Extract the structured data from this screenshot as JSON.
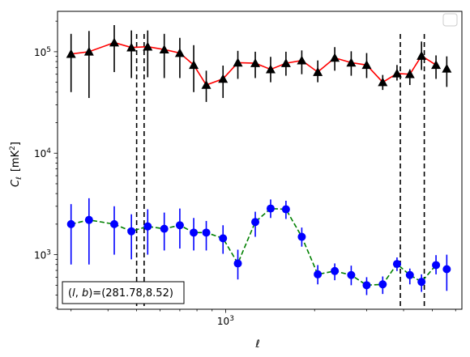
{
  "chart_data": {
    "type": "scatter",
    "xlabel": "ℓ",
    "ylabel_main": "C",
    "ylabel_sub": "ℓ",
    "ylabel_unit": "[mK",
    "ylabel_unit_sup": "2",
    "ylabel_unit_close": "]",
    "x_scale": "log",
    "y_scale": "log",
    "xlim": [
      270,
      6300
    ],
    "ylim": [
      290,
      250000
    ],
    "x_tick_labels": [
      {
        "value": 1000,
        "base": "10",
        "exp": "3"
      }
    ],
    "y_tick_labels": [
      {
        "value": 1000,
        "base": "10",
        "exp": "3"
      },
      {
        "value": 10000,
        "base": "10",
        "exp": "4"
      },
      {
        "value": 100000,
        "base": "10",
        "exp": "5"
      }
    ],
    "legend_box": "top-right",
    "annotation": "(l, b)=(281.78,8.52)",
    "annotation_parts": {
      "open": "(",
      "l": "l",
      "comma": ", ",
      "b": "b",
      "rest": ")=(281.78,8.52)"
    },
    "vlines": [
      500,
      530,
      3900,
      4700
    ],
    "colors": {
      "series1_line": "#ff0000",
      "series1_marker": "#000000",
      "series2_line": "#008000",
      "series2_marker": "#0000ff",
      "errorbar2": "#0000ff",
      "errorbar1": "#000000"
    },
    "series": [
      {
        "marker": "triangle",
        "x": [
          300,
          345,
          420,
          480,
          545,
          620,
          700,
          780,
          860,
          980,
          1100,
          1260,
          1420,
          1600,
          1810,
          2050,
          2340,
          2660,
          3000,
          3400,
          3800,
          4200,
          4600,
          5150
        ],
        "y": [
          95000,
          100000,
          123000,
          110000,
          112000,
          105000,
          97000,
          74000,
          47000,
          54000,
          78000,
          77000,
          67000,
          77000,
          82000,
          63000,
          87000,
          78000,
          74000,
          50000,
          61000,
          60000,
          91000,
          74000
        ],
        "err_low": [
          55000,
          65000,
          60000,
          55000,
          56000,
          50000,
          42000,
          34000,
          15000,
          19000,
          24000,
          22000,
          17000,
          19000,
          22000,
          13000,
          22000,
          20000,
          19000,
          8000,
          9000,
          13000,
          25000,
          20000
        ],
        "err_high": [
          55000,
          60000,
          60000,
          52000,
          50000,
          45000,
          40000,
          42000,
          18000,
          19000,
          24000,
          23000,
          22000,
          23000,
          21000,
          19000,
          24000,
          23000,
          23000,
          9000,
          13000,
          7000,
          35000,
          18000
        ],
        "extra_point": {
          "x": 5600,
          "y": 68000,
          "err_low": 23000,
          "err_high": 22000
        }
      },
      {
        "marker": "circle",
        "x": [
          300,
          345,
          420,
          480,
          545,
          620,
          700,
          780,
          860,
          980,
          1100,
          1260,
          1420,
          1600,
          1810,
          2050,
          2340,
          2660,
          3000,
          3400,
          3800,
          4200,
          4600,
          5150
        ],
        "y": [
          2000,
          2200,
          2000,
          1700,
          1900,
          1800,
          1950,
          1650,
          1650,
          1450,
          820,
          2100,
          2850,
          2800,
          1500,
          640,
          690,
          630,
          500,
          510,
          810,
          630,
          540,
          790
        ],
        "err_low": [
          1200,
          1400,
          1000,
          800,
          900,
          700,
          800,
          550,
          550,
          430,
          250,
          600,
          550,
          550,
          300,
          130,
          130,
          130,
          100,
          100,
          120,
          120,
          110,
          150
        ],
        "err_high": [
          1150,
          1400,
          1000,
          800,
          900,
          800,
          900,
          650,
          500,
          500,
          300,
          550,
          650,
          600,
          350,
          150,
          130,
          150,
          100,
          100,
          130,
          100,
          100,
          200
        ],
        "extra_point": {
          "x": 5600,
          "y": 720,
          "err_low": 280,
          "err_high": 280
        }
      }
    ]
  }
}
